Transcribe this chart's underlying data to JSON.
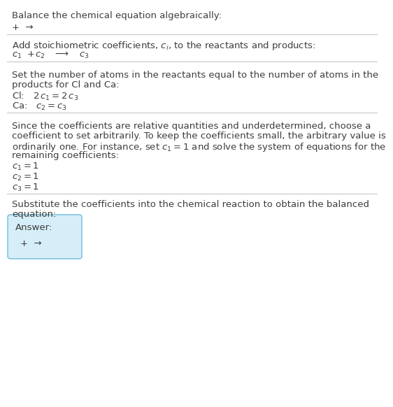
{
  "title": "Balance the chemical equation algebraically:",
  "bg_color": "#ffffff",
  "text_color": "#3d3d3d",
  "line_color": "#c8c8c8",
  "answer_box_facecolor": "#d6eef8",
  "answer_box_edgecolor": "#82c4e0",
  "font_size": 9.5,
  "section1_eq": "+  →",
  "section2_header": "Add stoichiometric coefficients, $c_i$, to the reactants and products:",
  "section2_eq": "$c_1$  +$c_2$   $\\longrightarrow$   $c_3$",
  "section3_line1": "Set the number of atoms in the reactants equal to the number of atoms in the",
  "section3_line2": "products for Cl and Ca:",
  "section3_cl": "Cl:   $2\\,c_1 = 2\\,c_3$",
  "section3_ca": "Ca:   $c_2 = c_3$",
  "section4_line1": "Since the coefficients are relative quantities and underdetermined, choose a",
  "section4_line2": "coefficient to set arbitrarily. To keep the coefficients small, the arbitrary value is",
  "section4_line3": "ordinarily one. For instance, set $c_1 = 1$ and solve the system of equations for the",
  "section4_line4": "remaining coefficients:",
  "section4_c1": "$c_1 = 1$",
  "section4_c2": "$c_2 = 1$",
  "section4_c3": "$c_3 = 1$",
  "section5_line1": "Substitute the coefficients into the chemical reaction to obtain the balanced",
  "section5_line2": "equation:",
  "answer_label": "Answer:",
  "answer_eq": "+  →"
}
